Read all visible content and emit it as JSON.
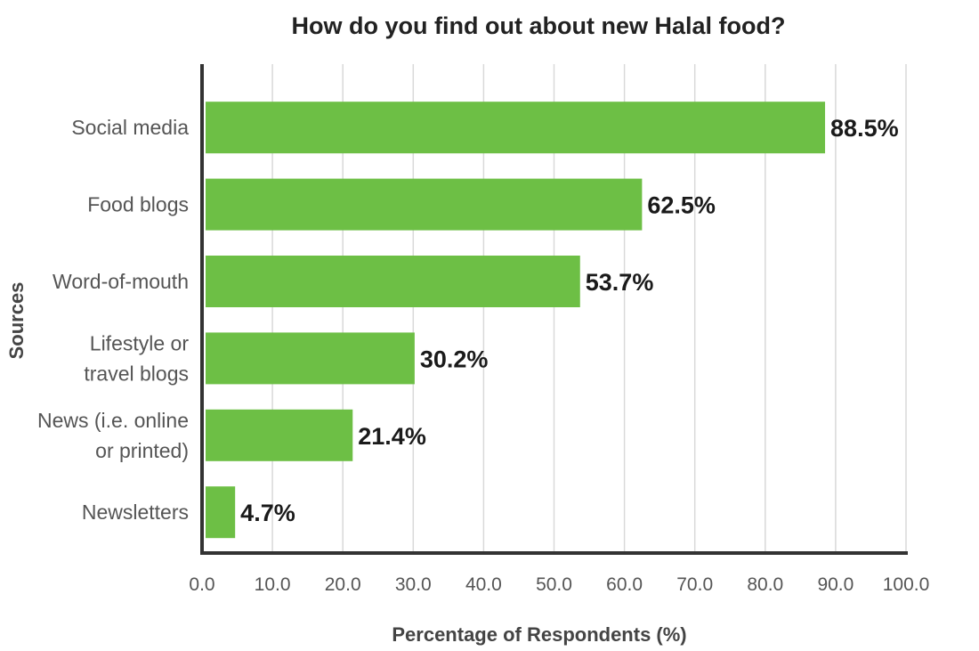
{
  "chart_data": {
    "type": "bar",
    "orientation": "horizontal",
    "title": "How do you find out about new Halal food?",
    "xlabel": "Percentage of Respondents (%)",
    "ylabel": "Sources",
    "categories": [
      [
        "Social media"
      ],
      [
        "Food blogs"
      ],
      [
        "Word-of-mouth"
      ],
      [
        "Lifestyle or",
        "travel blogs"
      ],
      [
        "News (i.e. online",
        "or printed)"
      ],
      [
        "Newsletters"
      ]
    ],
    "values": [
      88.5,
      62.5,
      53.7,
      30.2,
      21.4,
      4.7
    ],
    "data_labels": [
      "88.5%",
      "62.5%",
      "53.7%",
      "30.2%",
      "21.4%",
      "4.7%"
    ],
    "xlim": [
      0,
      100
    ],
    "x_ticks": [
      "0.0",
      "10.0",
      "20.0",
      "30.0",
      "40.0",
      "50.0",
      "60.0",
      "70.0",
      "80.0",
      "90.0",
      "100.0"
    ],
    "grid": "vertical",
    "bar_color": "#6dbf45",
    "grid_color": "#d9d9d9",
    "axis_color": "#333333"
  }
}
